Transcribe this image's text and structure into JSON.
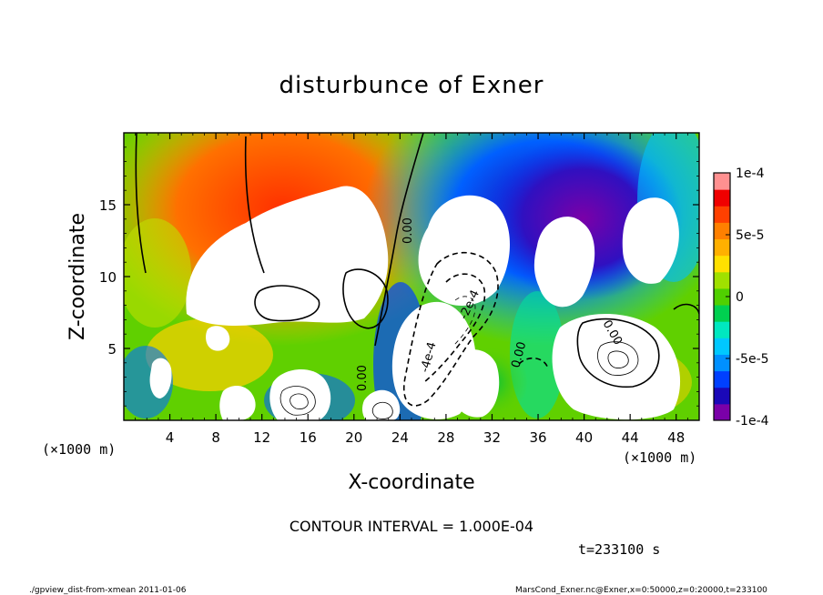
{
  "chart_data": {
    "type": "heatmap",
    "title": "disturbunce of Exner",
    "xlabel": "X-coordinate",
    "ylabel": "Z-coordinate",
    "x_unit": "(×1000 m)",
    "y_unit": "(×1000 m)",
    "xlim": [
      0,
      50
    ],
    "ylim": [
      0,
      20
    ],
    "x_ticks": [
      4,
      8,
      12,
      16,
      20,
      24,
      28,
      32,
      36,
      40,
      44,
      48
    ],
    "y_ticks": [
      5,
      10,
      15
    ],
    "contour_interval_text": "CONTOUR INTERVAL = 1.000E-04",
    "time_text": "t=233100 s",
    "contour_labels": [
      "0.00",
      "0.00",
      "0.00",
      "0.00",
      "-2e-4",
      "-4e-4"
    ],
    "colorbar": {
      "min": -0.0001,
      "max": 0.0001,
      "tick_values": [
        0.0001,
        5e-05,
        0,
        -5e-05,
        -0.0001
      ],
      "tick_labels": [
        "1e-4",
        "5e-5",
        "0",
        "-5e-5",
        "-1e-4"
      ],
      "colors": [
        "#7a00a8",
        "#1a08b8",
        "#0040ff",
        "#0090ff",
        "#00c8ff",
        "#00e8c0",
        "#00d050",
        "#50d000",
        "#a0e000",
        "#ffe000",
        "#ffb000",
        "#ff8000",
        "#ff4000",
        "#f00000",
        "#ff9090"
      ]
    },
    "footer_left": "./gpview_dist-from-xmean  2011-01-06",
    "footer_right": "MarsCond_Exner.nc@Exner,x=0:50000,z=0:20000,t=233100"
  }
}
